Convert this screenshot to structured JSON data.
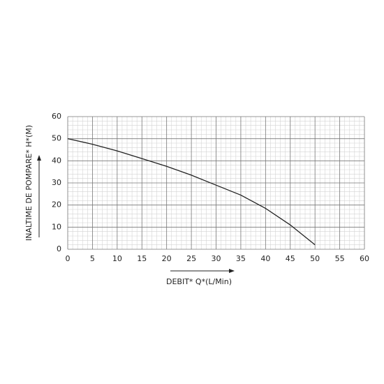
{
  "chart_data": {
    "type": "line",
    "x_label": "DEBIT* Q*(L/Min)",
    "y_label": "INALTIME DE POMPARE* H*(M)",
    "x": [
      0,
      5,
      10,
      15,
      20,
      25,
      30,
      35,
      40,
      45,
      50
    ],
    "series": [
      {
        "color": "#222222",
        "values": [
          50,
          47.5,
          44.5,
          41,
          37.5,
          33.5,
          29,
          24.5,
          18.5,
          11,
          2
        ]
      }
    ],
    "xlim": [
      0,
      60
    ],
    "xticks": [
      0,
      5,
      10,
      15,
      20,
      25,
      30,
      35,
      40,
      45,
      50,
      55,
      60
    ],
    "ylim": [
      0,
      60
    ],
    "yticks": [
      0,
      10,
      20,
      30,
      40,
      50,
      60
    ],
    "grid": true
  }
}
